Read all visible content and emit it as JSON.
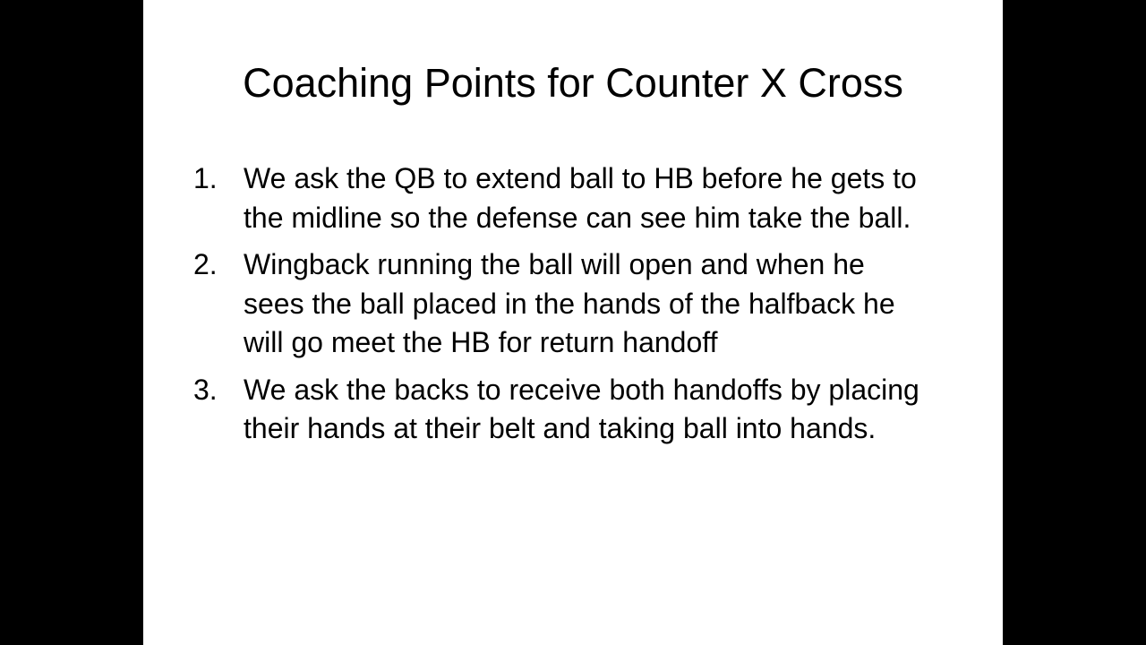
{
  "slide": {
    "title": "Coaching Points for Counter X Cross",
    "points": [
      {
        "number": "1.",
        "text": "We ask the QB to extend ball to HB before he gets to the midline so the defense can see him take the ball."
      },
      {
        "number": "2.",
        "text": "Wingback running the ball will open and when he sees the ball placed in the hands of the halfback he will go meet the HB for return handoff"
      },
      {
        "number": "3.",
        "text": "We ask the backs to receive both handoffs by placing their hands at their belt and taking ball into hands."
      }
    ]
  },
  "colors": {
    "letterbox": "#000000",
    "slide_background": "#ffffff",
    "text": "#000000"
  }
}
